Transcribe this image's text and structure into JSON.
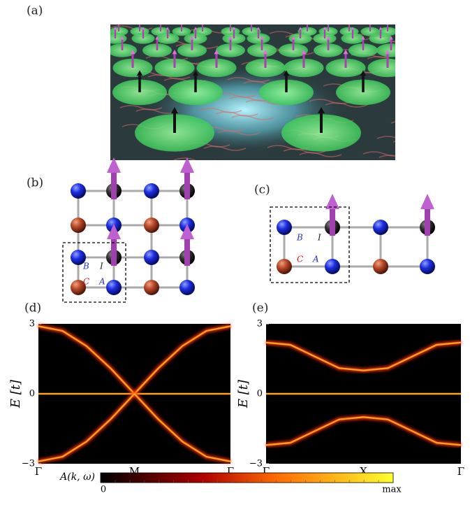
{
  "panels": {
    "a": {
      "label": "(a)"
    },
    "b": {
      "label": "(b)",
      "sites": {
        "B": "B",
        "I": "I",
        "C": "C",
        "A": "A"
      }
    },
    "c": {
      "label": "(c)",
      "sites": {
        "B": "B",
        "I": "I",
        "C": "C",
        "A": "A"
      }
    }
  },
  "chart_data": [
    {
      "type": "line",
      "title": "(d)",
      "y_label": "E [t]",
      "categories": [
        "Γ",
        null,
        null,
        null,
        "M",
        null,
        null,
        null,
        "Γ"
      ],
      "ylim": [
        -3,
        3
      ],
      "yticks": [
        {
          "value": -3,
          "label": "−3"
        },
        0,
        3
      ],
      "series": [
        {
          "color": "#ffa020",
          "values": [
            2.9,
            2.7,
            2.05,
            1.1,
            0,
            1.1,
            2.05,
            2.7,
            2.9
          ]
        },
        {
          "color": "#ffa020",
          "values": [
            0,
            0,
            0,
            0,
            0,
            0,
            0,
            0,
            0
          ]
        },
        {
          "color": "#ffa020",
          "values": [
            -2.9,
            -2.7,
            -2.05,
            -1.1,
            0,
            -1.1,
            -2.05,
            -2.7,
            -2.9
          ]
        }
      ]
    },
    {
      "type": "line",
      "title": "(e)",
      "y_label": "E [t]",
      "categories": [
        "Γ",
        null,
        null,
        null,
        "X",
        null,
        null,
        null,
        "Γ"
      ],
      "ylim": [
        -3,
        3
      ],
      "yticks": [
        {
          "value": -3,
          "label": "−3"
        },
        0,
        3
      ],
      "series": [
        {
          "color": "#ffa020",
          "values": [
            2.2,
            2.1,
            1.6,
            1.1,
            1.0,
            1.1,
            1.6,
            2.1,
            2.2
          ]
        },
        {
          "color": "#ffa020",
          "values": [
            0,
            0,
            0,
            0,
            0,
            0,
            0,
            0,
            0
          ]
        },
        {
          "color": "#ffa020",
          "values": [
            -2.2,
            -2.1,
            -1.6,
            -1.1,
            -1.0,
            -1.1,
            -1.6,
            -2.1,
            -2.2
          ]
        }
      ]
    }
  ],
  "colorbar": {
    "label": "A(k, ω)",
    "min_label": "0",
    "max_label": "max"
  }
}
